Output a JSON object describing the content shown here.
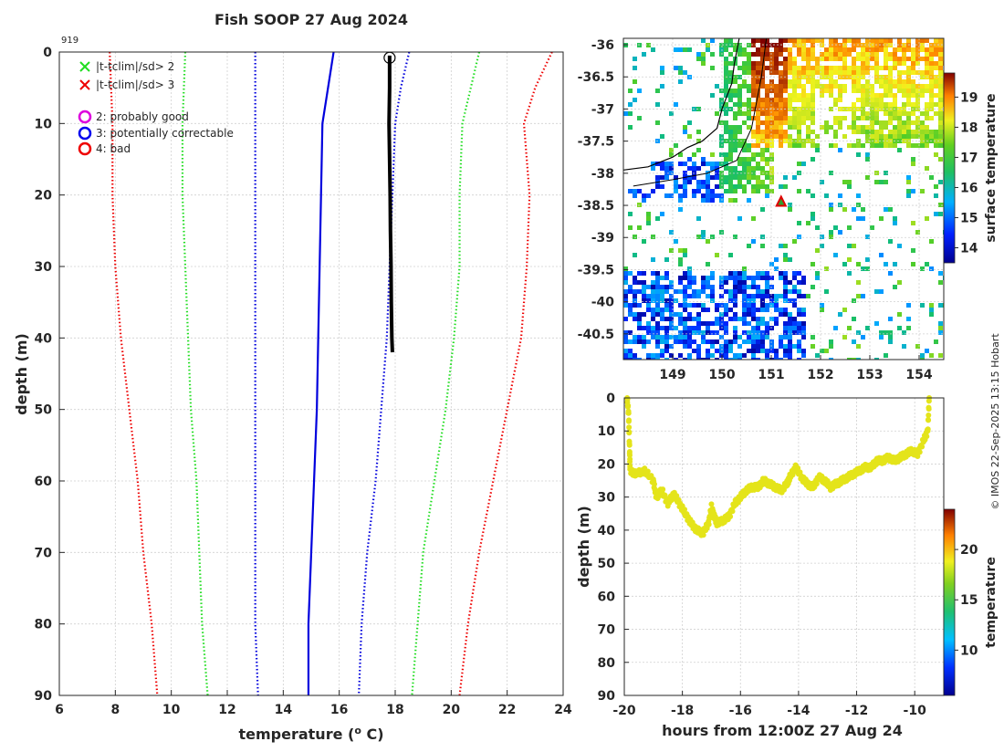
{
  "chart_data": [
    {
      "type": "line",
      "name": "temperature-profile",
      "title": "Fish SOOP 27 Aug 2024",
      "profile_id": "919",
      "xlabel": "temperature (",
      "xlabel_sup": "o",
      "xlabel_end": " C)",
      "ylabel": "depth (m)",
      "xlim": [
        6,
        24
      ],
      "ylim": [
        90,
        0
      ],
      "xticks": [
        6,
        8,
        10,
        12,
        14,
        16,
        18,
        20,
        22,
        24
      ],
      "yticks": [
        0,
        10,
        20,
        30,
        40,
        50,
        60,
        70,
        80,
        90
      ],
      "legend": [
        {
          "label": "|t-tclim|/sd> 2",
          "marker": "x",
          "color": "#22dd22"
        },
        {
          "label": "|t-tclim|/sd> 3",
          "marker": "x",
          "color": "#ee0000"
        },
        {
          "label": "2: probably good",
          "marker": "o",
          "color": "#dd00dd"
        },
        {
          "label": "3: potentially correctable",
          "marker": "o",
          "color": "#0000ee"
        },
        {
          "label": "4: bad",
          "marker": "o",
          "color": "#ee0000"
        }
      ],
      "series": [
        {
          "name": "climatology mean",
          "style": "solid",
          "color": "#0000dd",
          "points": [
            [
              15.8,
              0
            ],
            [
              15.6,
              5
            ],
            [
              15.4,
              10
            ],
            [
              15.35,
              20
            ],
            [
              15.3,
              30
            ],
            [
              15.25,
              40
            ],
            [
              15.2,
              50
            ],
            [
              15.1,
              60
            ],
            [
              15.0,
              70
            ],
            [
              14.9,
              80
            ],
            [
              14.9,
              90
            ]
          ]
        },
        {
          "name": "+1 sd",
          "style": "dotted",
          "color": "#0000dd",
          "points": [
            [
              18.5,
              0
            ],
            [
              18.2,
              5
            ],
            [
              18.0,
              10
            ],
            [
              17.9,
              20
            ],
            [
              17.8,
              30
            ],
            [
              17.7,
              40
            ],
            [
              17.5,
              50
            ],
            [
              17.3,
              60
            ],
            [
              17.0,
              70
            ],
            [
              16.8,
              80
            ],
            [
              16.7,
              90
            ]
          ]
        },
        {
          "name": "-1 sd",
          "style": "dotted",
          "color": "#0000dd",
          "points": [
            [
              13.0,
              0
            ],
            [
              13.0,
              10
            ],
            [
              13.0,
              20
            ],
            [
              13.0,
              30
            ],
            [
              13.0,
              40
            ],
            [
              13.0,
              50
            ],
            [
              13.0,
              60
            ],
            [
              13.0,
              70
            ],
            [
              13.0,
              80
            ],
            [
              13.1,
              90
            ]
          ]
        },
        {
          "name": "+2 sd",
          "style": "dotted",
          "color": "#22dd22",
          "points": [
            [
              21.0,
              0
            ],
            [
              20.7,
              5
            ],
            [
              20.4,
              10
            ],
            [
              20.3,
              20
            ],
            [
              20.3,
              30
            ],
            [
              20.1,
              40
            ],
            [
              19.8,
              50
            ],
            [
              19.4,
              60
            ],
            [
              19.0,
              70
            ],
            [
              18.8,
              80
            ],
            [
              18.6,
              90
            ]
          ]
        },
        {
          "name": "-2 sd",
          "style": "dotted",
          "color": "#22dd22",
          "points": [
            [
              10.5,
              0
            ],
            [
              10.4,
              10
            ],
            [
              10.4,
              20
            ],
            [
              10.5,
              30
            ],
            [
              10.6,
              40
            ],
            [
              10.7,
              50
            ],
            [
              10.9,
              60
            ],
            [
              11.0,
              70
            ],
            [
              11.1,
              80
            ],
            [
              11.3,
              90
            ]
          ]
        },
        {
          "name": "+3 sd",
          "style": "dotted",
          "color": "#ee0000",
          "points": [
            [
              23.6,
              0
            ],
            [
              23.0,
              5
            ],
            [
              22.6,
              10
            ],
            [
              22.8,
              20
            ],
            [
              22.7,
              30
            ],
            [
              22.5,
              40
            ],
            [
              22.0,
              50
            ],
            [
              21.5,
              60
            ],
            [
              21.0,
              70
            ],
            [
              20.6,
              80
            ],
            [
              20.3,
              90
            ]
          ]
        },
        {
          "name": "-3 sd",
          "style": "dotted",
          "color": "#ee0000",
          "points": [
            [
              7.8,
              0
            ],
            [
              7.9,
              10
            ],
            [
              7.9,
              20
            ],
            [
              8.0,
              30
            ],
            [
              8.2,
              40
            ],
            [
              8.5,
              50
            ],
            [
              8.8,
              60
            ],
            [
              9.0,
              70
            ],
            [
              9.3,
              80
            ],
            [
              9.5,
              90
            ]
          ]
        },
        {
          "name": "observed",
          "style": "thick",
          "color": "#000000",
          "points": [
            [
              17.8,
              0.5
            ],
            [
              17.8,
              5
            ],
            [
              17.78,
              10
            ],
            [
              17.8,
              15
            ],
            [
              17.82,
              20
            ],
            [
              17.83,
              25
            ],
            [
              17.85,
              30
            ],
            [
              17.86,
              35
            ],
            [
              17.88,
              40
            ],
            [
              17.9,
              42
            ]
          ]
        }
      ],
      "start_marker": {
        "x": 17.8,
        "y": 0.8
      }
    },
    {
      "type": "heatmap",
      "name": "sst-map",
      "xlim": [
        148,
        154.5
      ],
      "ylim": [
        -40.9,
        -35.9
      ],
      "xticks": [
        149,
        150,
        151,
        152,
        153,
        154
      ],
      "yticks": [
        -36,
        -36.5,
        -37,
        -37.5,
        -38,
        -38.5,
        -39,
        -39.5,
        -40,
        -40.5
      ],
      "colorbar": {
        "label": "surface temperature",
        "range": [
          13.5,
          19.8
        ],
        "ticks": [
          14,
          15,
          16,
          17,
          18,
          19
        ]
      },
      "station": {
        "lon": 151.2,
        "lat": -38.45
      },
      "coast": [
        [
          148.0,
          -37.95
        ],
        [
          148.5,
          -37.9
        ],
        [
          149.0,
          -37.75
        ],
        [
          149.3,
          -37.6
        ],
        [
          149.6,
          -37.5
        ],
        [
          149.9,
          -37.3
        ],
        [
          150.0,
          -37.0
        ],
        [
          150.2,
          -36.6
        ],
        [
          150.25,
          -36.3
        ],
        [
          150.3,
          -36.1
        ],
        [
          150.35,
          -35.9
        ]
      ],
      "shelf": [
        [
          148.2,
          -38.2
        ],
        [
          149.0,
          -38.1
        ],
        [
          149.7,
          -38.0
        ],
        [
          150.3,
          -37.8
        ],
        [
          150.6,
          -37.3
        ],
        [
          150.8,
          -36.5
        ],
        [
          150.9,
          -35.9
        ]
      ]
    },
    {
      "type": "scatter",
      "name": "depth-time",
      "xlabel": "hours from 12:00Z 27 Aug 24",
      "ylabel": "depth (m)",
      "xlim": [
        -20,
        -9
      ],
      "ylim": [
        90,
        0
      ],
      "xticks": [
        -20,
        -18,
        -16,
        -14,
        -12,
        -10
      ],
      "yticks": [
        0,
        10,
        20,
        30,
        40,
        50,
        60,
        70,
        80,
        90
      ],
      "colorbar": {
        "label": "temperature",
        "range": [
          5.5,
          24
        ],
        "ticks": [
          10,
          15,
          20
        ]
      },
      "points": [
        [
          -19.9,
          0
        ],
        [
          -19.85,
          5
        ],
        [
          -19.82,
          15
        ],
        [
          -19.8,
          22
        ],
        [
          -19.6,
          23
        ],
        [
          -19.3,
          22
        ],
        [
          -19.0,
          25
        ],
        [
          -18.9,
          30
        ],
        [
          -18.7,
          28
        ],
        [
          -18.5,
          32
        ],
        [
          -18.3,
          29
        ],
        [
          -18.1,
          32
        ],
        [
          -17.9,
          35
        ],
        [
          -17.7,
          38
        ],
        [
          -17.5,
          40
        ],
        [
          -17.3,
          41
        ],
        [
          -17.1,
          38
        ],
        [
          -17.0,
          33
        ],
        [
          -16.9,
          36
        ],
        [
          -16.8,
          38
        ],
        [
          -16.6,
          37
        ],
        [
          -16.4,
          36
        ],
        [
          -16.2,
          32
        ],
        [
          -16.0,
          30
        ],
        [
          -15.8,
          28
        ],
        [
          -15.6,
          27
        ],
        [
          -15.4,
          27
        ],
        [
          -15.2,
          25
        ],
        [
          -15.0,
          26
        ],
        [
          -14.8,
          27
        ],
        [
          -14.6,
          28
        ],
        [
          -14.4,
          26
        ],
        [
          -14.3,
          24
        ],
        [
          -14.1,
          21
        ],
        [
          -13.9,
          24
        ],
        [
          -13.7,
          26
        ],
        [
          -13.5,
          27
        ],
        [
          -13.3,
          24
        ],
        [
          -13.1,
          25
        ],
        [
          -12.9,
          27
        ],
        [
          -12.7,
          26
        ],
        [
          -12.5,
          25
        ],
        [
          -12.3,
          24
        ],
        [
          -12.1,
          23
        ],
        [
          -11.9,
          22
        ],
        [
          -11.7,
          21
        ],
        [
          -11.5,
          21
        ],
        [
          -11.3,
          19
        ],
        [
          -11.1,
          19
        ],
        [
          -10.9,
          18
        ],
        [
          -10.7,
          19
        ],
        [
          -10.5,
          18
        ],
        [
          -10.3,
          17
        ],
        [
          -10.1,
          16
        ],
        [
          -9.9,
          17
        ],
        [
          -9.7,
          13
        ],
        [
          -9.55,
          10
        ],
        [
          -9.5,
          0
        ]
      ]
    }
  ],
  "footer": {
    "credit": "© IMOS 22-Sep-2025 13:15 Hobart"
  },
  "colors": {
    "profile_line": "#000000",
    "depth_points": "#e4e41a"
  }
}
